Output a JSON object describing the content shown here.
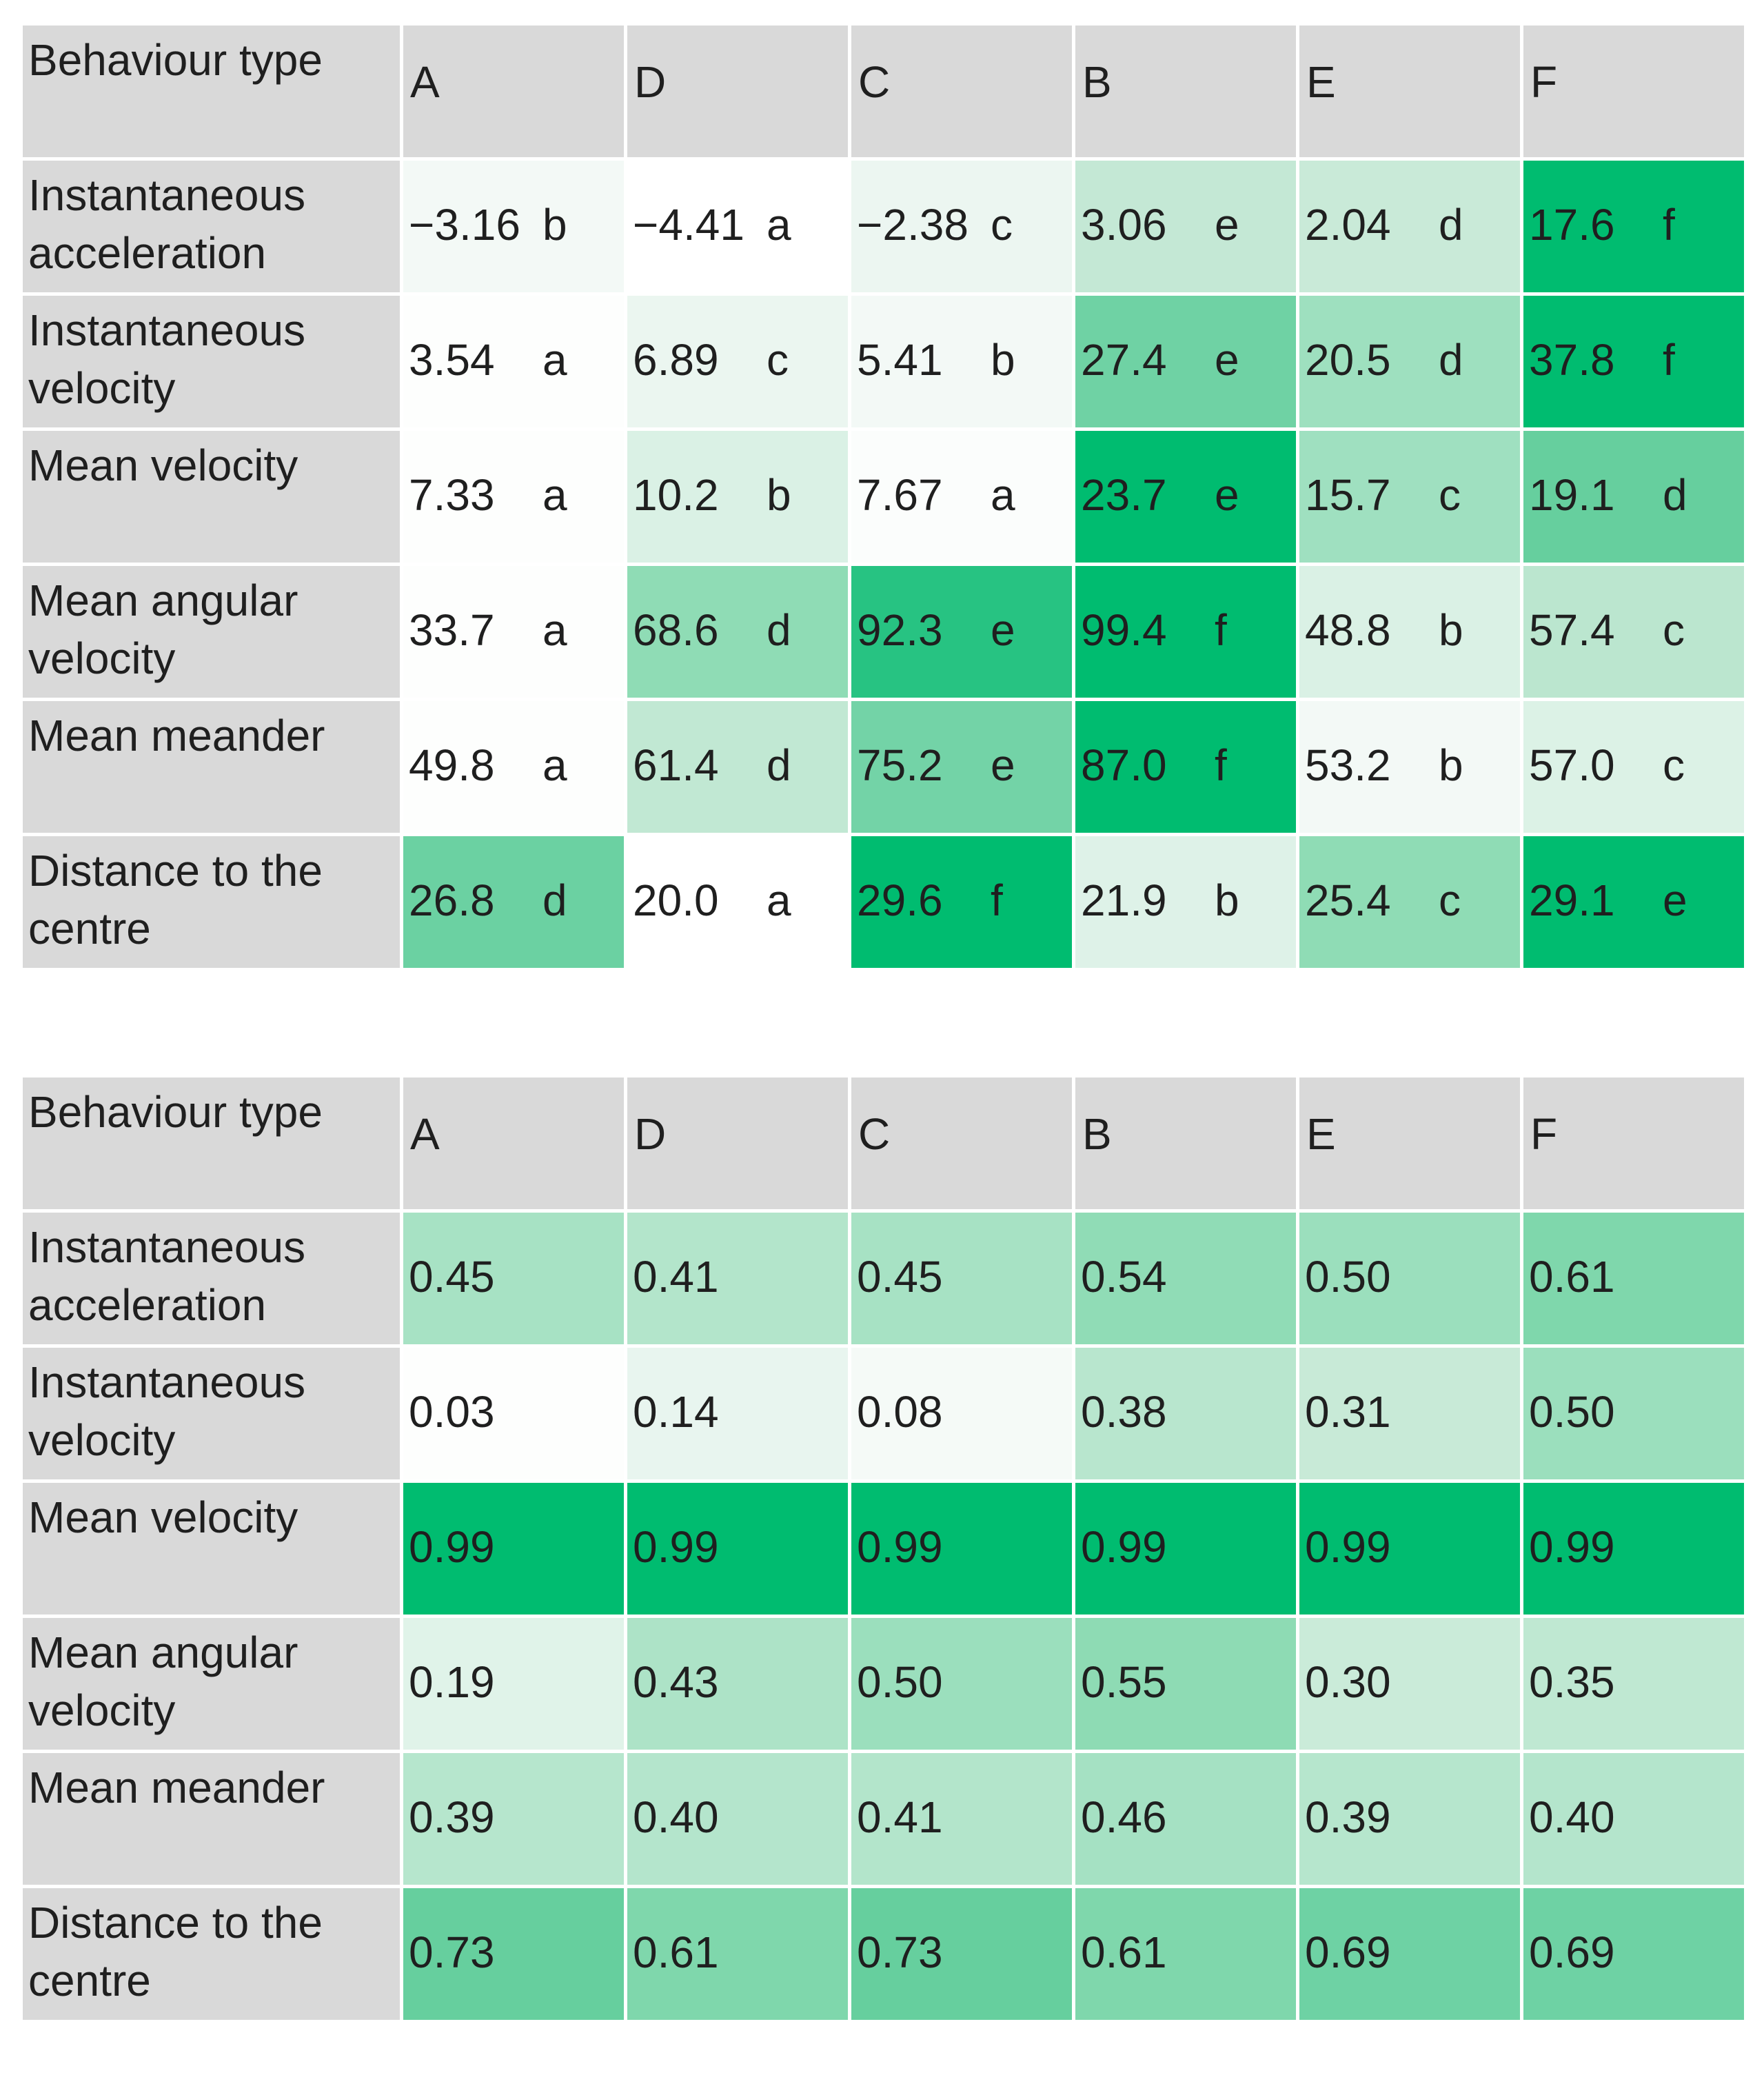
{
  "top_table": {
    "corner_label": "Behaviour type",
    "columns": [
      "A",
      "D",
      "C",
      "B",
      "E",
      "F"
    ],
    "rows": [
      {
        "label": "Instantaneous acceleration",
        "cells": [
          {
            "value": "−3.16",
            "group": "b",
            "color": "#f3f9f6"
          },
          {
            "value": "−4.41",
            "group": "a",
            "color": "#ffffff"
          },
          {
            "value": "−2.38",
            "group": "c",
            "color": "#ecf6f1"
          },
          {
            "value": "3.06",
            "group": "e",
            "color": "#c4e8d5"
          },
          {
            "value": "2.04",
            "group": "d",
            "color": "#c9ead8"
          },
          {
            "value": "17.6",
            "group": "f",
            "color": "#00bc70"
          }
        ]
      },
      {
        "label": "Instantaneous velocity",
        "cells": [
          {
            "value": "3.54",
            "group": "a",
            "color": "#fdfefd"
          },
          {
            "value": "6.89",
            "group": "c",
            "color": "#ebf6f0"
          },
          {
            "value": "5.41",
            "group": "b",
            "color": "#f3f9f6"
          },
          {
            "value": "27.4",
            "group": "e",
            "color": "#6fd2a4"
          },
          {
            "value": "20.5",
            "group": "d",
            "color": "#9ee0bf"
          },
          {
            "value": "37.8",
            "group": "f",
            "color": "#00bc70"
          }
        ]
      },
      {
        "label": "Mean velocity",
        "cells": [
          {
            "value": "7.33",
            "group": "a",
            "color": "#fdfefd"
          },
          {
            "value": "10.2",
            "group": "b",
            "color": "#daf1e5"
          },
          {
            "value": "7.67",
            "group": "a",
            "color": "#fbfdfc"
          },
          {
            "value": "23.7",
            "group": "e",
            "color": "#00bc70"
          },
          {
            "value": "15.7",
            "group": "c",
            "color": "#9fe0c0"
          },
          {
            "value": "19.1",
            "group": "d",
            "color": "#66cf9e"
          }
        ]
      },
      {
        "label": "Mean angular velocity",
        "cells": [
          {
            "value": "33.7",
            "group": "a",
            "color": "#fdfefd"
          },
          {
            "value": "68.6",
            "group": "d",
            "color": "#8fdcb5"
          },
          {
            "value": "92.3",
            "group": "e",
            "color": "#27c382"
          },
          {
            "value": "99.4",
            "group": "f",
            "color": "#00bc70"
          },
          {
            "value": "48.8",
            "group": "b",
            "color": "#daf1e5"
          },
          {
            "value": "57.4",
            "group": "c",
            "color": "#bbe6cf"
          }
        ]
      },
      {
        "label": "Mean meander",
        "cells": [
          {
            "value": "49.8",
            "group": "a",
            "color": "#fdfefd"
          },
          {
            "value": "61.4",
            "group": "d",
            "color": "#c1e8d3"
          },
          {
            "value": "75.2",
            "group": "e",
            "color": "#73d3a7"
          },
          {
            "value": "87.0",
            "group": "f",
            "color": "#00bc70"
          },
          {
            "value": "53.2",
            "group": "b",
            "color": "#f3f9f6"
          },
          {
            "value": "57.0",
            "group": "c",
            "color": "#dcf2e6"
          }
        ]
      },
      {
        "label": "Distance to the centre",
        "cells": [
          {
            "value": "26.8",
            "group": "d",
            "color": "#6bd1a2"
          },
          {
            "value": "20.0",
            "group": "a",
            "color": "#ffffff"
          },
          {
            "value": "29.6",
            "group": "f",
            "color": "#00bc70"
          },
          {
            "value": "21.9",
            "group": "b",
            "color": "#def2e8"
          },
          {
            "value": "25.4",
            "group": "c",
            "color": "#8fdcb5"
          },
          {
            "value": "29.1",
            "group": "e",
            "color": "#00bc70"
          }
        ]
      }
    ]
  },
  "bottom_table": {
    "corner_label": "Behaviour type",
    "columns": [
      "A",
      "D",
      "C",
      "B",
      "E",
      "F"
    ],
    "rows": [
      {
        "label": "Instantaneous acceleration",
        "cells": [
          {
            "value": "0.45",
            "color": "#a7e2c4"
          },
          {
            "value": "0.41",
            "color": "#b3e5cb"
          },
          {
            "value": "0.45",
            "color": "#a7e2c4"
          },
          {
            "value": "0.54",
            "color": "#90dcb6"
          },
          {
            "value": "0.50",
            "color": "#9bdfbd"
          },
          {
            "value": "0.61",
            "color": "#7fd7ac"
          }
        ]
      },
      {
        "label": "Instantaneous velocity",
        "cells": [
          {
            "value": "0.03",
            "color": "#fdfefd"
          },
          {
            "value": "0.14",
            "color": "#e8f5ef"
          },
          {
            "value": "0.08",
            "color": "#f5faf7"
          },
          {
            "value": "0.38",
            "color": "#b8e6ce"
          },
          {
            "value": "0.31",
            "color": "#c8ead7"
          },
          {
            "value": "0.50",
            "color": "#9bdfbd"
          }
        ]
      },
      {
        "label": "Mean velocity",
        "cells": [
          {
            "value": "0.99",
            "color": "#00bc70"
          },
          {
            "value": "0.99",
            "color": "#00bc70"
          },
          {
            "value": "0.99",
            "color": "#00bc70"
          },
          {
            "value": "0.99",
            "color": "#00bc70"
          },
          {
            "value": "0.99",
            "color": "#00bc70"
          },
          {
            "value": "0.99",
            "color": "#00bc70"
          }
        ]
      },
      {
        "label": "Mean angular velocity",
        "cells": [
          {
            "value": "0.19",
            "color": "#e0f3e9"
          },
          {
            "value": "0.43",
            "color": "#ade3c7"
          },
          {
            "value": "0.50",
            "color": "#9bdfbd"
          },
          {
            "value": "0.55",
            "color": "#8edbb4"
          },
          {
            "value": "0.30",
            "color": "#caebd9"
          },
          {
            "value": "0.35",
            "color": "#bfe8d2"
          }
        ]
      },
      {
        "label": "Mean meander",
        "cells": [
          {
            "value": "0.39",
            "color": "#b6e6cd"
          },
          {
            "value": "0.40",
            "color": "#b4e5cc"
          },
          {
            "value": "0.41",
            "color": "#b3e5cb"
          },
          {
            "value": "0.46",
            "color": "#a5e1c3"
          },
          {
            "value": "0.39",
            "color": "#b6e6cd"
          },
          {
            "value": "0.40",
            "color": "#b4e5cc"
          }
        ]
      },
      {
        "label": "Distance to the centre",
        "cells": [
          {
            "value": "0.73",
            "color": "#66cf9e"
          },
          {
            "value": "0.61",
            "color": "#7fd7ac"
          },
          {
            "value": "0.73",
            "color": "#66cf9e"
          },
          {
            "value": "0.61",
            "color": "#7fd7ac"
          },
          {
            "value": "0.69",
            "color": "#6ed2a4"
          },
          {
            "value": "0.69",
            "color": "#6ed2a4"
          }
        ]
      }
    ]
  }
}
